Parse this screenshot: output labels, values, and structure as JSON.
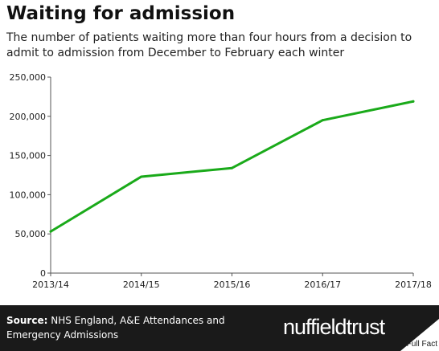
{
  "header": {
    "title": "Waiting for admission",
    "subtitle": "The number of patients waiting more than four hours from a decision to admit to admission from December to February each winter"
  },
  "footer": {
    "source_label": "Source:",
    "source_text": "NHS England, A&E Attendances and Emergency Admissions",
    "brand": "nuffieldtrust",
    "watermark": "Full Fact"
  },
  "colors": {
    "line": "#1aaa1a",
    "axis": "#555555",
    "grid": "#dddddd",
    "footer_bg": "#1a1a1a"
  },
  "chart_data": {
    "type": "line",
    "title": "Waiting for admission",
    "subtitle": "The number of patients waiting more than four hours from a decision to admit to admission from December to February each winter",
    "categories": [
      "2013/14",
      "2014/15",
      "2015/16",
      "2016/17",
      "2017/18"
    ],
    "series": [
      {
        "values": [
          53000,
          123000,
          134000,
          195000,
          219000
        ]
      }
    ],
    "ylim": [
      0,
      250000
    ],
    "yticks": [
      0,
      50000,
      100000,
      150000,
      200000,
      250000
    ],
    "ytick_labels": [
      "0",
      "50,000",
      "100,000",
      "150,000",
      "200,000",
      "250,000"
    ],
    "xlabel": "",
    "ylabel": "",
    "grid": false,
    "legend": "none"
  }
}
